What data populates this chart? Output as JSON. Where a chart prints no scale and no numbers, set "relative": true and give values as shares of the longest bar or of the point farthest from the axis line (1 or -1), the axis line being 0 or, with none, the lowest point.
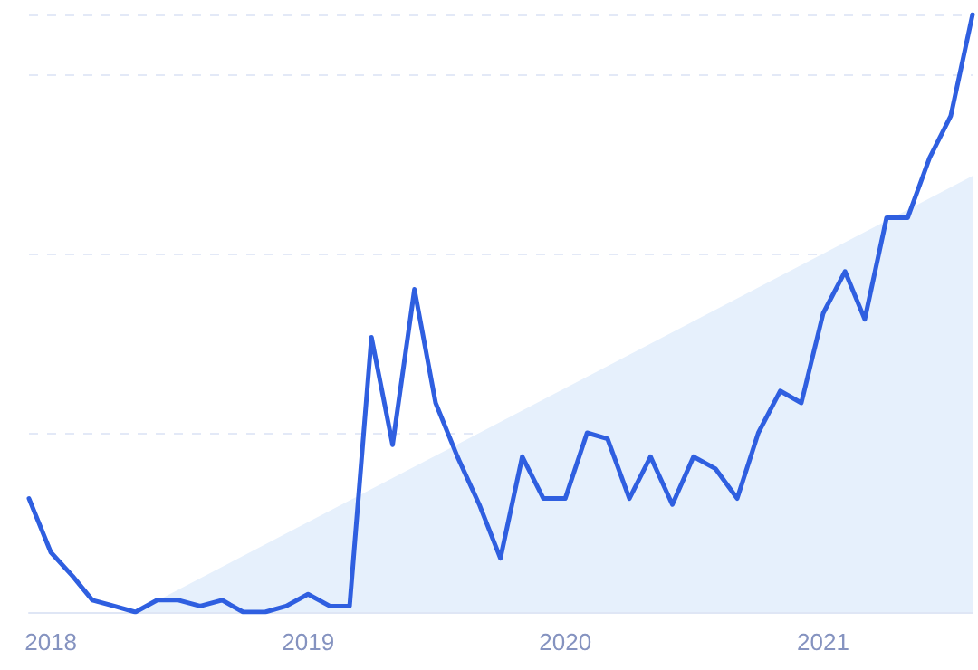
{
  "chart_data": {
    "type": "line",
    "relative": true,
    "grid": "y",
    "marker": "none",
    "line_style": "solid",
    "x": [
      "2017-12",
      "2018-01",
      "2018-02",
      "2018-03",
      "2018-04",
      "2018-05",
      "2018-06",
      "2018-07",
      "2018-08",
      "2018-09",
      "2018-10",
      "2018-11",
      "2018-12",
      "2019-01",
      "2019-02",
      "2019-03",
      "2019-04",
      "2019-05",
      "2019-06",
      "2019-07",
      "2019-08",
      "2019-09",
      "2019-10",
      "2019-11",
      "2019-12",
      "2020-01",
      "2020-02",
      "2020-03",
      "2020-04",
      "2020-05",
      "2020-06",
      "2020-07",
      "2020-08",
      "2020-09",
      "2020-10",
      "2020-11",
      "2020-12",
      "2021-01",
      "2021-02",
      "2021-03",
      "2021-04",
      "2021-05",
      "2021-06",
      "2021-07",
      "2021-08"
    ],
    "xlim": [
      "2017-12",
      "2021-08"
    ],
    "xticks": [
      "2018",
      "2019",
      "2020",
      "2021"
    ],
    "series": [
      {
        "type": "area",
        "color": "#e6f0fc",
        "x": [
          "2018-05",
          "2021-08"
        ],
        "values": [
          0,
          0.73
        ]
      },
      {
        "color": "#2f5fe0",
        "values": [
          0.19,
          0.1,
          0.06,
          0.02,
          0.01,
          0,
          0.02,
          0.02,
          0.01,
          0.02,
          0,
          0,
          0.01,
          0.03,
          0.01,
          0.01,
          0.46,
          0.28,
          0.54,
          0.35,
          0.26,
          0.18,
          0.09,
          0.26,
          0.19,
          0.19,
          0.3,
          0.29,
          0.19,
          0.26,
          0.18,
          0.26,
          0.24,
          0.19,
          0.3,
          0.37,
          0.35,
          0.5,
          0.57,
          0.49,
          0.66,
          0.66,
          0.76,
          0.83,
          1.0
        ]
      }
    ]
  }
}
